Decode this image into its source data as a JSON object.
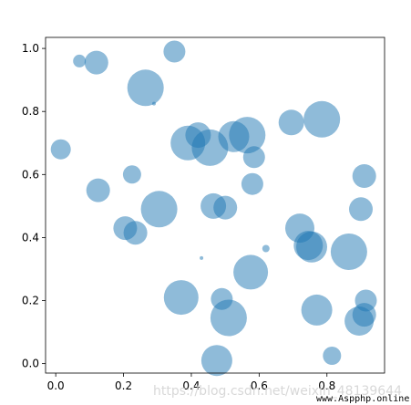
{
  "chart_data": {
    "type": "scatter",
    "title": "",
    "xlabel": "",
    "ylabel": "",
    "xlim": [
      -0.03,
      0.97
    ],
    "ylim": [
      -0.03,
      1.035
    ],
    "x_ticks": [
      "0.0",
      "0.2",
      "0.4",
      "0.6",
      "0.8"
    ],
    "x_tick_values": [
      0.0,
      0.2,
      0.4,
      0.6,
      0.8
    ],
    "y_ticks": [
      "0.0",
      "0.2",
      "0.4",
      "0.6",
      "0.8",
      "1.0"
    ],
    "y_tick_values": [
      0.0,
      0.2,
      0.4,
      0.6,
      0.8,
      1.0
    ],
    "grid": false,
    "marker_color": "#1f77b4",
    "marker_alpha": 0.5,
    "points": [
      {
        "x": 0.07,
        "y": 0.96,
        "r": 7
      },
      {
        "x": 0.12,
        "y": 0.955,
        "r": 13
      },
      {
        "x": 0.35,
        "y": 0.99,
        "r": 12
      },
      {
        "x": 0.265,
        "y": 0.875,
        "r": 20
      },
      {
        "x": 0.29,
        "y": 0.825,
        "r": 2
      },
      {
        "x": 0.015,
        "y": 0.68,
        "r": 11
      },
      {
        "x": 0.225,
        "y": 0.6,
        "r": 10
      },
      {
        "x": 0.125,
        "y": 0.55,
        "r": 13
      },
      {
        "x": 0.42,
        "y": 0.725,
        "r": 14
      },
      {
        "x": 0.39,
        "y": 0.7,
        "r": 19
      },
      {
        "x": 0.455,
        "y": 0.685,
        "r": 20
      },
      {
        "x": 0.525,
        "y": 0.72,
        "r": 17
      },
      {
        "x": 0.565,
        "y": 0.725,
        "r": 20
      },
      {
        "x": 0.585,
        "y": 0.655,
        "r": 12
      },
      {
        "x": 0.695,
        "y": 0.765,
        "r": 14
      },
      {
        "x": 0.785,
        "y": 0.775,
        "r": 20
      },
      {
        "x": 0.91,
        "y": 0.595,
        "r": 13
      },
      {
        "x": 0.58,
        "y": 0.57,
        "r": 12
      },
      {
        "x": 0.465,
        "y": 0.5,
        "r": 14
      },
      {
        "x": 0.5,
        "y": 0.495,
        "r": 13
      },
      {
        "x": 0.305,
        "y": 0.49,
        "r": 20
      },
      {
        "x": 0.205,
        "y": 0.43,
        "r": 13
      },
      {
        "x": 0.235,
        "y": 0.415,
        "r": 13
      },
      {
        "x": 0.72,
        "y": 0.43,
        "r": 16
      },
      {
        "x": 0.745,
        "y": 0.375,
        "r": 16
      },
      {
        "x": 0.755,
        "y": 0.37,
        "r": 17
      },
      {
        "x": 0.865,
        "y": 0.355,
        "r": 20
      },
      {
        "x": 0.9,
        "y": 0.49,
        "r": 13
      },
      {
        "x": 0.43,
        "y": 0.335,
        "r": 2
      },
      {
        "x": 0.62,
        "y": 0.365,
        "r": 4
      },
      {
        "x": 0.37,
        "y": 0.21,
        "r": 19
      },
      {
        "x": 0.49,
        "y": 0.205,
        "r": 12
      },
      {
        "x": 0.575,
        "y": 0.29,
        "r": 19
      },
      {
        "x": 0.51,
        "y": 0.145,
        "r": 20
      },
      {
        "x": 0.77,
        "y": 0.17,
        "r": 17
      },
      {
        "x": 0.915,
        "y": 0.2,
        "r": 12
      },
      {
        "x": 0.895,
        "y": 0.135,
        "r": 16
      },
      {
        "x": 0.91,
        "y": 0.155,
        "r": 13
      },
      {
        "x": 0.475,
        "y": 0.01,
        "r": 17
      },
      {
        "x": 0.815,
        "y": 0.025,
        "r": 10
      }
    ]
  },
  "watermark": {
    "faint_text": "https://blog.csdn.net/weixin_48139644",
    "site_text": "www.Aspphp.online"
  }
}
